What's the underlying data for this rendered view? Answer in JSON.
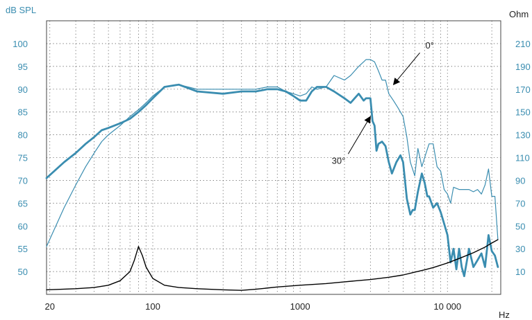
{
  "chart_data": {
    "type": "line",
    "xscale": "log",
    "xlim": [
      19,
      23000
    ],
    "x_ticks": [
      {
        "value": 20,
        "label": "20"
      },
      {
        "value": 100,
        "label": "100"
      },
      {
        "value": 1000,
        "label": "1000"
      },
      {
        "value": 10000,
        "label": "10 000"
      }
    ],
    "xunit": "Hz",
    "ylabel_left": "dB SPL",
    "ylabel_right": "Ohm",
    "ylim_left": [
      45,
      105
    ],
    "left_ticks": [
      50,
      55,
      60,
      65,
      70,
      75,
      80,
      85,
      90,
      95,
      100
    ],
    "right_ticks": [
      10,
      30,
      50,
      70,
      90,
      110,
      130,
      150,
      170,
      190,
      210
    ],
    "grid": true,
    "colors": {
      "spl": "#3a8db0",
      "impedance": "#000000",
      "grid": "#555555"
    },
    "annotations": [
      {
        "label": "0°",
        "target_series": "spl_0deg",
        "x": 4300,
        "y": 91
      },
      {
        "label": "30°",
        "target_series": "spl_30deg",
        "x": 3000,
        "y": 84
      }
    ],
    "series": [
      {
        "id": "spl_0deg",
        "axis": "left",
        "style": "thin",
        "x": [
          19,
          25,
          30,
          35,
          40,
          45,
          50,
          60,
          70,
          80,
          90,
          100,
          120,
          150,
          200,
          300,
          400,
          500,
          600,
          700,
          800,
          900,
          1000,
          1100,
          1200,
          1300,
          1500,
          1700,
          2000,
          2200,
          2500,
          2700,
          2800,
          3000,
          3200,
          3400,
          3600,
          3800,
          4000,
          4300,
          4600,
          5000,
          5300,
          5600,
          6000,
          6300,
          6700,
          7000,
          7500,
          8000,
          8500,
          9000,
          9500,
          10000,
          10500,
          11000,
          12000,
          13000,
          14000,
          15000,
          16000,
          17000,
          18000,
          19000,
          20000,
          21000,
          22000
        ],
        "y": [
          55.5,
          64,
          69,
          73,
          76,
          78.5,
          80,
          82,
          84,
          85.5,
          87,
          88.5,
          90.5,
          91,
          90,
          90,
          90,
          90,
          90.5,
          90.5,
          89.5,
          89,
          88.5,
          89,
          90.5,
          90,
          90.5,
          93,
          92,
          93,
          95,
          96,
          96.5,
          96.5,
          96,
          94,
          92,
          92,
          89,
          87.5,
          86,
          84,
          79.5,
          74,
          71,
          77,
          73,
          75,
          78,
          78,
          73,
          72,
          68,
          67,
          65,
          68.5,
          68,
          68,
          68,
          67.5,
          68,
          67,
          69,
          72.5,
          66.5,
          66.5,
          57
        ]
      },
      {
        "id": "spl_30deg",
        "axis": "left",
        "style": "thick",
        "x": [
          19,
          25,
          30,
          35,
          40,
          45,
          50,
          60,
          70,
          80,
          90,
          100,
          120,
          150,
          200,
          300,
          400,
          500,
          600,
          700,
          800,
          900,
          1000,
          1100,
          1200,
          1300,
          1500,
          1700,
          2000,
          2200,
          2500,
          2700,
          2800,
          3000,
          3100,
          3200,
          3300,
          3400,
          3600,
          3800,
          4000,
          4200,
          4500,
          4800,
          5000,
          5300,
          5600,
          5800,
          6000,
          6300,
          6700,
          7000,
          7300,
          7500,
          8000,
          8500,
          9000,
          9500,
          10000,
          10500,
          11000,
          11500,
          12000,
          12500,
          13000,
          14000,
          15000,
          16000,
          17000,
          18000,
          19000,
          20000,
          21000,
          22000
        ],
        "y": [
          70.5,
          74,
          76,
          78,
          79.5,
          81,
          81.5,
          82.5,
          83.5,
          85,
          86.5,
          88,
          90.5,
          91,
          89.5,
          89,
          89.5,
          89.5,
          90,
          90,
          89.5,
          88.5,
          87.5,
          87.5,
          89.5,
          90.5,
          90.5,
          89.5,
          88,
          87,
          89,
          87.5,
          88,
          88,
          83,
          82,
          76.5,
          78,
          78.5,
          77.5,
          74,
          71.5,
          74,
          75.5,
          74,
          66,
          62.5,
          63.5,
          63.5,
          67.5,
          71.5,
          69.5,
          66.5,
          66.5,
          64,
          65,
          63,
          60.5,
          58,
          52,
          55,
          50.5,
          55,
          51,
          49,
          55,
          51,
          52.5,
          54,
          51,
          58,
          54.5,
          53.5,
          51
        ]
      },
      {
        "id": "impedance",
        "axis": "right",
        "style": "thin",
        "x": [
          19,
          30,
          40,
          50,
          60,
          70,
          75,
          80,
          85,
          90,
          100,
          120,
          150,
          200,
          300,
          400,
          500,
          700,
          1000,
          1500,
          2000,
          3000,
          4000,
          5000,
          6000,
          7000,
          8000,
          10000,
          12000,
          15000,
          18000,
          20000,
          22000
        ],
        "y": [
          -6,
          -5,
          -4,
          -2,
          2,
          10,
          20,
          32,
          24,
          14,
          4,
          -2,
          -4,
          -5,
          -6,
          -6.5,
          -5.5,
          -3.5,
          -2,
          -0.5,
          1,
          3,
          5,
          7,
          9.5,
          11.5,
          13.5,
          17.5,
          21.5,
          26.5,
          31.5,
          35,
          38
        ]
      }
    ]
  }
}
